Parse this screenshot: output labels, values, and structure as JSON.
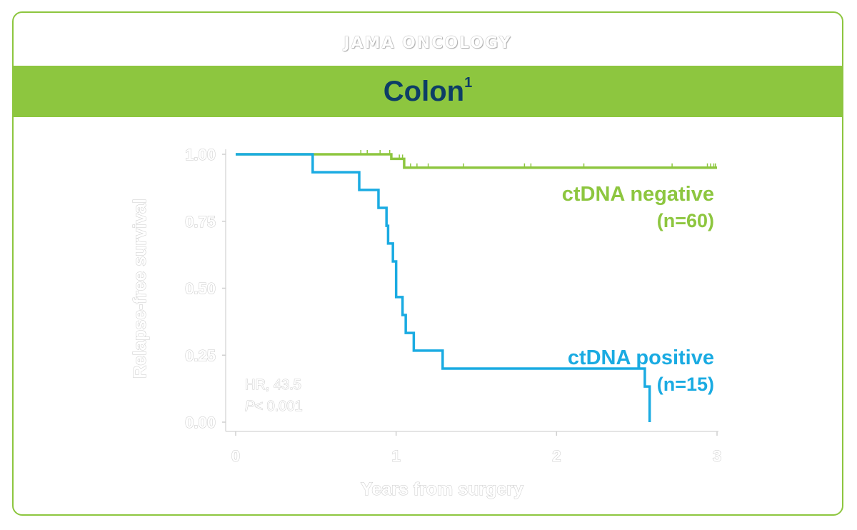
{
  "header": {
    "journal": "JAMA ONCOLOGY"
  },
  "banner": {
    "title": "Colon",
    "superscript": "1"
  },
  "colors": {
    "brand_green": "#8dc63f",
    "title_navy": "#0d3d66",
    "negative_line": "#8dc63f",
    "positive_line": "#1aabe2"
  },
  "chart_data": {
    "type": "line",
    "subtype": "kaplan-meier",
    "xlabel": "Years from surgery",
    "ylabel": "Relapse-free survival",
    "xlim": [
      0,
      3
    ],
    "ylim": [
      0,
      1
    ],
    "xticks": [
      "0",
      "1",
      "2",
      "3"
    ],
    "yticks": [
      "0.00",
      "0.25",
      "0.50",
      "0.75",
      "1.00"
    ],
    "annotation": {
      "hr": "HR, 43.5",
      "p_label": "P",
      "p_value": "< 0.001"
    },
    "series": [
      {
        "name": "ctDNA negative",
        "n_label": "(n=60)",
        "color": "#8dc63f",
        "steps": [
          [
            0,
            1.0
          ],
          [
            0.97,
            0.983
          ],
          [
            1.05,
            0.95
          ],
          [
            3.0,
            0.95
          ]
        ],
        "censor_x": [
          0.78,
          0.82,
          0.9,
          0.96,
          1.02,
          1.04,
          1.09,
          1.13,
          1.2,
          1.42,
          1.8,
          1.84,
          2.17,
          2.72,
          2.94,
          2.96,
          2.98,
          2.99
        ]
      },
      {
        "name": "ctDNA positive",
        "n_label": "(n=15)",
        "color": "#1aabe2",
        "steps": [
          [
            0,
            1.0
          ],
          [
            0.48,
            0.933
          ],
          [
            0.77,
            0.867
          ],
          [
            0.89,
            0.8
          ],
          [
            0.94,
            0.733
          ],
          [
            0.95,
            0.667
          ],
          [
            0.98,
            0.6
          ],
          [
            1.0,
            0.467
          ],
          [
            1.04,
            0.4
          ],
          [
            1.06,
            0.333
          ],
          [
            1.11,
            0.267
          ],
          [
            1.29,
            0.2
          ],
          [
            2.55,
            0.133
          ],
          [
            2.58,
            0.0
          ]
        ],
        "censor_x": []
      }
    ]
  }
}
